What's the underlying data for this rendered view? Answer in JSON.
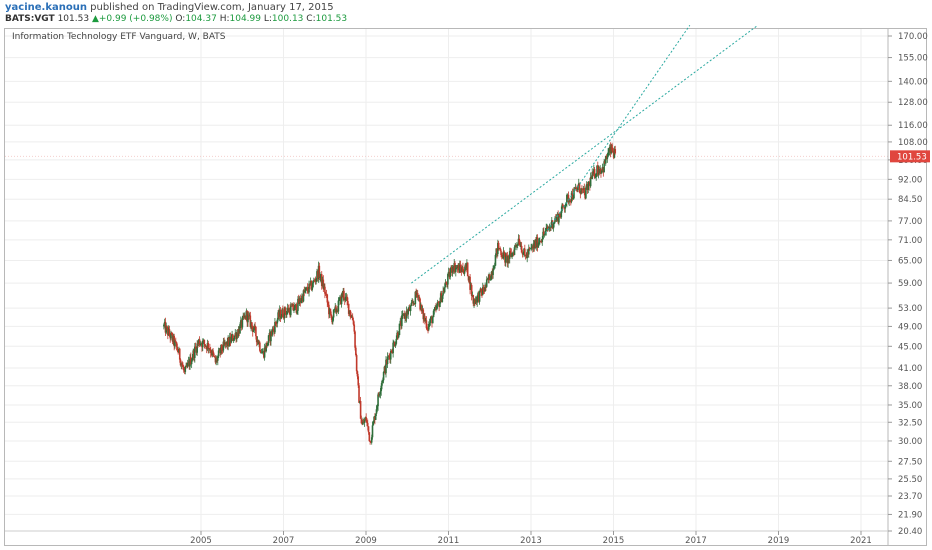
{
  "header": {
    "user": "yacine.kanoun",
    "published": "published on TradingView.com, January 17, 2015",
    "symbol": "BATS:VGT",
    "price": "101.53",
    "change_arrow": "▲",
    "change": "+0.99 (+0.98%)",
    "o_label": "O:",
    "o_value": "104.37",
    "h_label": "H:",
    "h_value": "104.99",
    "l_label": "L:",
    "l_value": "100.13",
    "c_label": "C:",
    "c_value": "101.53"
  },
  "colors": {
    "up_candle": "#2f6e3a",
    "down_candle": "#c0392b",
    "trendline": "#2aa9a0",
    "price_badge": "#e0463e",
    "grid": "#eeeeee",
    "axis_text": "#555555"
  },
  "chart_data": {
    "type": "candlestick",
    "title": "Information Technology ETF Vanguard, W, BATS",
    "interval": "W",
    "scale": "log",
    "x_ticks": [
      "2005",
      "2007",
      "2009",
      "2011",
      "2013",
      "2015",
      "2017",
      "2019",
      "2021"
    ],
    "y_ticks": [
      "170.00",
      "155.00",
      "140.00",
      "128.00",
      "116.00",
      "108.00",
      "100.00",
      "92.00",
      "84.50",
      "77.00",
      "71.00",
      "65.00",
      "59.00",
      "53.00",
      "49.00",
      "45.00",
      "41.00",
      "38.00",
      "35.00",
      "32.50",
      "30.00",
      "27.50",
      "25.50",
      "23.70",
      "21.90",
      "20.40"
    ],
    "ylim": [
      20.4,
      170
    ],
    "last_price": "101.53",
    "price_path": [
      [
        2004.1,
        49.0
      ],
      [
        2004.3,
        46.5
      ],
      [
        2004.45,
        44.0
      ],
      [
        2004.6,
        40.0
      ],
      [
        2004.75,
        42.5
      ],
      [
        2004.95,
        46.0
      ],
      [
        2005.2,
        45.0
      ],
      [
        2005.35,
        42.0
      ],
      [
        2005.5,
        44.5
      ],
      [
        2005.7,
        46.0
      ],
      [
        2005.9,
        48.0
      ],
      [
        2006.1,
        51.5
      ],
      [
        2006.3,
        48.0
      ],
      [
        2006.5,
        43.5
      ],
      [
        2006.7,
        47.5
      ],
      [
        2006.9,
        51.5
      ],
      [
        2007.1,
        52.5
      ],
      [
        2007.3,
        53.0
      ],
      [
        2007.5,
        56.5
      ],
      [
        2007.7,
        58.5
      ],
      [
        2007.85,
        62.0
      ],
      [
        2008.0,
        57.0
      ],
      [
        2008.15,
        50.5
      ],
      [
        2008.3,
        53.0
      ],
      [
        2008.45,
        56.5
      ],
      [
        2008.6,
        52.5
      ],
      [
        2008.7,
        50.0
      ],
      [
        2008.8,
        38.0
      ],
      [
        2008.9,
        32.0
      ],
      [
        2009.0,
        33.0
      ],
      [
        2009.1,
        30.0
      ],
      [
        2009.2,
        33.0
      ],
      [
        2009.35,
        38.0
      ],
      [
        2009.5,
        42.0
      ],
      [
        2009.7,
        46.0
      ],
      [
        2009.9,
        51.0
      ],
      [
        2010.1,
        53.0
      ],
      [
        2010.25,
        57.0
      ],
      [
        2010.35,
        52.0
      ],
      [
        2010.5,
        49.0
      ],
      [
        2010.65,
        51.5
      ],
      [
        2010.8,
        55.0
      ],
      [
        2010.95,
        59.0
      ],
      [
        2011.1,
        63.5
      ],
      [
        2011.3,
        62.5
      ],
      [
        2011.45,
        63.0
      ],
      [
        2011.6,
        54.5
      ],
      [
        2011.75,
        56.0
      ],
      [
        2011.9,
        58.0
      ],
      [
        2012.05,
        62.0
      ],
      [
        2012.2,
        69.0
      ],
      [
        2012.4,
        65.0
      ],
      [
        2012.55,
        67.0
      ],
      [
        2012.7,
        71.5
      ],
      [
        2012.85,
        66.0
      ],
      [
        2013.0,
        68.0
      ],
      [
        2013.2,
        71.0
      ],
      [
        2013.4,
        74.0
      ],
      [
        2013.55,
        77.0
      ],
      [
        2013.7,
        79.0
      ],
      [
        2013.85,
        84.0
      ],
      [
        2014.0,
        86.0
      ],
      [
        2014.15,
        89.0
      ],
      [
        2014.3,
        86.0
      ],
      [
        2014.45,
        92.0
      ],
      [
        2014.6,
        96.0
      ],
      [
        2014.75,
        96.5
      ],
      [
        2014.85,
        102.0
      ],
      [
        2014.95,
        104.5
      ],
      [
        2015.05,
        101.53
      ]
    ],
    "trendlines": [
      {
        "from": [
          2010.1,
          59.0
        ],
        "to": [
          2018.5,
          178.0
        ]
      },
      {
        "from": [
          2013.35,
          73.0
        ],
        "to": [
          2016.85,
          178.0
        ]
      }
    ]
  }
}
